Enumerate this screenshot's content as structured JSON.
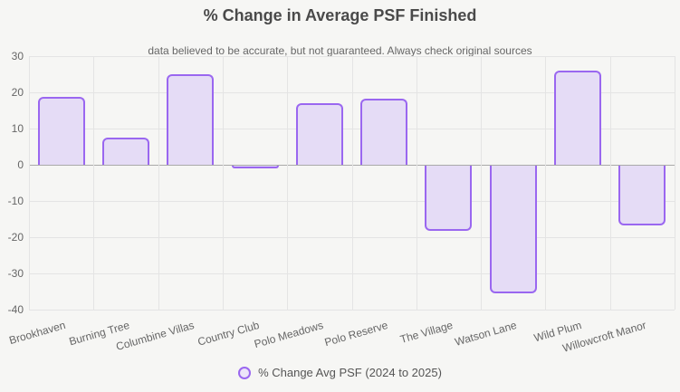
{
  "header": {
    "title": "% Change in Average PSF Finished",
    "subtitle": "data believed to be accurate, but not guaranteed. Always check original sources"
  },
  "legend": {
    "label": "% Change Avg PSF (2024 to 2025)",
    "marker": "circle-icon",
    "position": "bottom"
  },
  "colors": {
    "page_background": "#f6f6f4",
    "bar_fill": "#e5dcf6",
    "bar_border": "#9a67f0",
    "grid": "#e4e4e4",
    "zero_line": "#a9a9a9",
    "axis_text": "#666666",
    "title_text": "#4a4a4a",
    "legend_text": "#555555"
  },
  "chart_data": {
    "type": "bar",
    "title": "% Change in Average PSF Finished",
    "subtitle": "data believed to be accurate, but not guaranteed. Always check original sources",
    "categories": [
      "Brookhaven",
      "Burning Tree",
      "Columbine Villas",
      "Country Club",
      "Polo Meadows",
      "Polo Reserve",
      "The Village",
      "Watson Lane",
      "Wild Plum",
      "Willowcroft Manor"
    ],
    "series": [
      {
        "name": "% Change Avg PSF (2024 to 2025)",
        "values": [
          18.8,
          7.4,
          24.9,
          -0.8,
          16.9,
          18.2,
          -17.9,
          -35.3,
          25.9,
          -16.6
        ]
      }
    ],
    "ylabel": "",
    "xlabel": "",
    "ylim": [
      -40,
      30
    ],
    "y_ticks": [
      30,
      20,
      10,
      0,
      -10,
      -20,
      -30,
      -40
    ],
    "grid": true,
    "x_tick_rotation_deg": -16,
    "legend_position": "bottom"
  }
}
